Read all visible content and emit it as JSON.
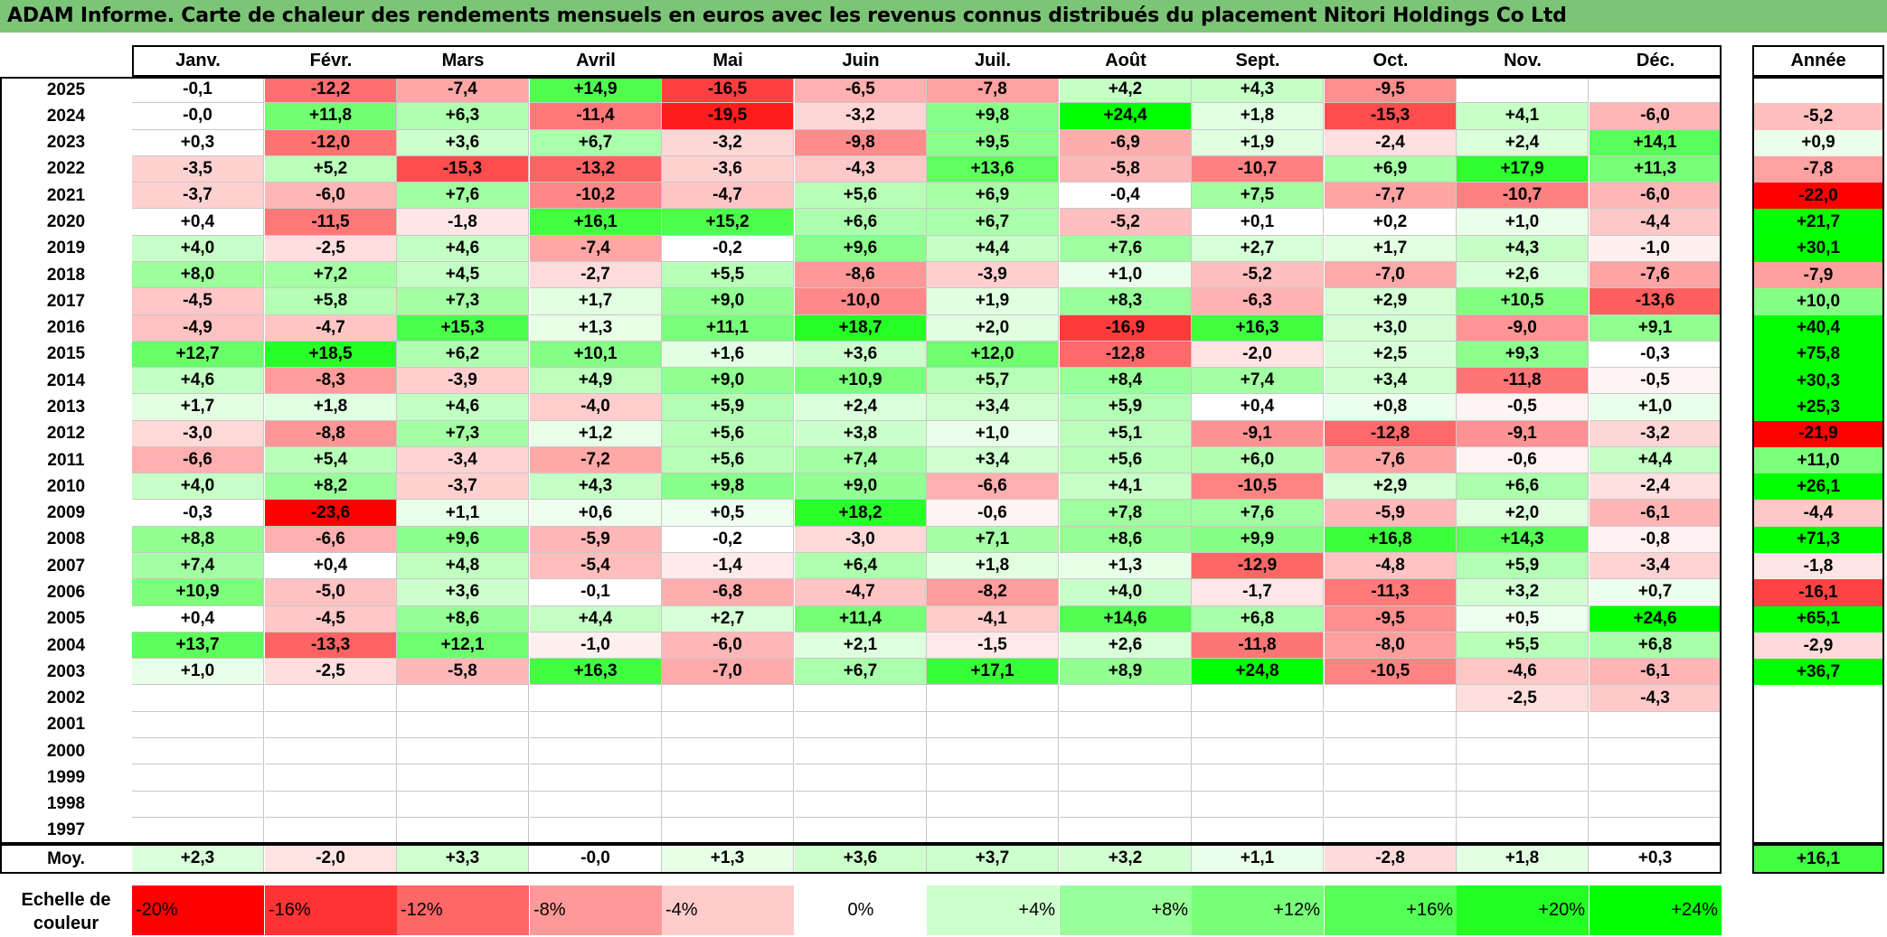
{
  "title": "ADAM Informe. Carte de chaleur des rendements mensuels en euros avec les revenus connus distribués du placement Nitori Holdings Co Ltd",
  "chart_data": {
    "type": "heatmap",
    "title": "ADAM Informe. Carte de chaleur des rendements mensuels en euros avec les revenus connus distribués du placement Nitori Holdings Co Ltd",
    "months": [
      "Janv.",
      "Févr.",
      "Mars",
      "Avril",
      "Mai",
      "Juin",
      "Juil.",
      "Août",
      "Sept.",
      "Oct.",
      "Nov.",
      "Déc."
    ],
    "year_header": "Année",
    "rows": [
      {
        "year": "2025",
        "values": [
          -0.1,
          -12.2,
          -7.4,
          14.9,
          -16.5,
          -6.5,
          -7.8,
          4.2,
          4.3,
          -9.5,
          null,
          null
        ],
        "annual": null
      },
      {
        "year": "2024",
        "values": [
          0.0,
          11.8,
          6.3,
          -11.4,
          -19.5,
          -3.2,
          9.8,
          24.4,
          1.8,
          -15.3,
          4.1,
          -6.0
        ],
        "annual": -5.2,
        "neg_zero": [
          0
        ]
      },
      {
        "year": "2023",
        "values": [
          0.3,
          -12.0,
          3.6,
          6.7,
          -3.2,
          -9.8,
          9.5,
          -6.9,
          1.9,
          -2.4,
          2.4,
          14.1
        ],
        "annual": 0.9
      },
      {
        "year": "2022",
        "values": [
          -3.5,
          5.2,
          -15.3,
          -13.2,
          -3.6,
          -4.3,
          13.6,
          -5.8,
          -10.7,
          6.9,
          17.9,
          11.3
        ],
        "annual": -7.8
      },
      {
        "year": "2021",
        "values": [
          -3.7,
          -6.0,
          7.6,
          -10.2,
          -4.7,
          5.6,
          6.9,
          -0.4,
          7.5,
          -7.7,
          -10.7,
          -6.0
        ],
        "annual": -22.0
      },
      {
        "year": "2020",
        "values": [
          0.4,
          -11.5,
          -1.8,
          16.1,
          15.2,
          6.6,
          6.7,
          -5.2,
          0.1,
          0.2,
          1.0,
          -4.4
        ],
        "annual": 21.7
      },
      {
        "year": "2019",
        "values": [
          4.0,
          -2.5,
          4.6,
          -7.4,
          -0.2,
          9.6,
          4.4,
          7.6,
          2.7,
          1.7,
          4.3,
          -1.0
        ],
        "annual": 30.1
      },
      {
        "year": "2018",
        "values": [
          8.0,
          7.2,
          4.5,
          -2.7,
          5.5,
          -8.6,
          -3.9,
          1.0,
          -5.2,
          -7.0,
          2.6,
          -7.6
        ],
        "annual": -7.9
      },
      {
        "year": "2017",
        "values": [
          -4.5,
          5.8,
          7.3,
          1.7,
          9.0,
          -10.0,
          1.9,
          8.3,
          -6.3,
          2.9,
          10.5,
          -13.6
        ],
        "annual": 10.0
      },
      {
        "year": "2016",
        "values": [
          -4.9,
          -4.7,
          15.3,
          1.3,
          11.1,
          18.7,
          2.0,
          -16.9,
          16.3,
          3.0,
          -9.0,
          9.1
        ],
        "annual": 40.4
      },
      {
        "year": "2015",
        "values": [
          12.7,
          18.5,
          6.2,
          10.1,
          1.6,
          3.6,
          12.0,
          -12.8,
          -2.0,
          2.5,
          9.3,
          -0.3
        ],
        "annual": 75.8
      },
      {
        "year": "2014",
        "values": [
          4.6,
          -8.3,
          -3.9,
          4.9,
          9.0,
          10.9,
          5.7,
          8.4,
          7.4,
          3.4,
          -11.8,
          -0.5
        ],
        "annual": 30.3
      },
      {
        "year": "2013",
        "values": [
          1.7,
          1.8,
          4.6,
          -4.0,
          5.9,
          2.4,
          3.4,
          5.9,
          0.4,
          0.8,
          -0.5,
          1.0
        ],
        "annual": 25.3
      },
      {
        "year": "2012",
        "values": [
          -3.0,
          -8.8,
          7.3,
          1.2,
          5.6,
          3.8,
          1.0,
          5.1,
          -9.1,
          -12.8,
          -9.1,
          -3.2
        ],
        "annual": -21.9
      },
      {
        "year": "2011",
        "values": [
          -6.6,
          5.4,
          -3.4,
          -7.2,
          5.6,
          7.4,
          3.4,
          5.6,
          6.0,
          -7.6,
          -0.6,
          4.4
        ],
        "annual": 11.0
      },
      {
        "year": "2010",
        "values": [
          4.0,
          8.2,
          -3.7,
          4.3,
          9.8,
          9.0,
          -6.6,
          4.1,
          -10.5,
          2.9,
          6.6,
          -2.4
        ],
        "annual": 26.1
      },
      {
        "year": "2009",
        "values": [
          -0.3,
          -23.6,
          1.1,
          0.6,
          0.5,
          18.2,
          -0.6,
          7.8,
          7.6,
          -5.9,
          2.0,
          -6.1
        ],
        "annual": -4.4
      },
      {
        "year": "2008",
        "values": [
          8.8,
          -6.6,
          9.6,
          -5.9,
          -0.2,
          -3.0,
          7.1,
          8.6,
          9.9,
          16.8,
          14.3,
          -0.8
        ],
        "annual": 71.3
      },
      {
        "year": "2007",
        "values": [
          7.4,
          0.4,
          4.8,
          -5.4,
          -1.4,
          6.4,
          1.8,
          1.3,
          -12.9,
          -4.8,
          5.9,
          -3.4
        ],
        "annual": -1.8
      },
      {
        "year": "2006",
        "values": [
          10.9,
          -5.0,
          3.6,
          -0.1,
          -6.8,
          -4.7,
          -8.2,
          4.0,
          -1.7,
          -11.3,
          3.2,
          0.7
        ],
        "annual": -16.1
      },
      {
        "year": "2005",
        "values": [
          0.4,
          -4.5,
          8.6,
          4.4,
          2.7,
          11.4,
          -4.1,
          14.6,
          6.8,
          -9.5,
          0.5,
          24.6
        ],
        "annual": 65.1
      },
      {
        "year": "2004",
        "values": [
          13.7,
          -13.3,
          12.1,
          -1.0,
          -6.0,
          2.1,
          -1.5,
          2.6,
          -11.8,
          -8.0,
          5.5,
          6.8
        ],
        "annual": -2.9
      },
      {
        "year": "2003",
        "values": [
          1.0,
          -2.5,
          -5.8,
          16.3,
          -7.0,
          6.7,
          17.1,
          8.9,
          24.8,
          -10.5,
          -4.6,
          -6.1
        ],
        "annual": 36.7
      },
      {
        "year": "2002",
        "values": [
          null,
          null,
          null,
          null,
          null,
          null,
          null,
          null,
          null,
          null,
          -2.5,
          -4.3
        ],
        "annual": null
      },
      {
        "year": "2001",
        "values": [
          null,
          null,
          null,
          null,
          null,
          null,
          null,
          null,
          null,
          null,
          null,
          null
        ],
        "annual": null
      },
      {
        "year": "2000",
        "values": [
          null,
          null,
          null,
          null,
          null,
          null,
          null,
          null,
          null,
          null,
          null,
          null
        ],
        "annual": null
      },
      {
        "year": "1999",
        "values": [
          null,
          null,
          null,
          null,
          null,
          null,
          null,
          null,
          null,
          null,
          null,
          null
        ],
        "annual": null
      },
      {
        "year": "1998",
        "values": [
          null,
          null,
          null,
          null,
          null,
          null,
          null,
          null,
          null,
          null,
          null,
          null
        ],
        "annual": null
      },
      {
        "year": "1997",
        "values": [
          null,
          null,
          null,
          null,
          null,
          null,
          null,
          null,
          null,
          null,
          null,
          null
        ],
        "annual": null
      }
    ],
    "average": {
      "label": "Moy.",
      "values": [
        2.3,
        -2.0,
        3.3,
        -0.0,
        1.3,
        3.6,
        3.7,
        3.2,
        1.1,
        -2.8,
        1.8,
        0.3
      ],
      "annual": 16.1,
      "neg_zero": [
        3
      ]
    },
    "scale": {
      "label_line1": "Echelle de",
      "label_line2": "couleur",
      "steps": [
        {
          "label": "-20%",
          "value": -20,
          "color": "#ff0000"
        },
        {
          "label": "-16%",
          "value": -16,
          "color": "#ff3333"
        },
        {
          "label": "-12%",
          "value": -12,
          "color": "#ff6666"
        },
        {
          "label": "-8%",
          "value": -8,
          "color": "#ff9999"
        },
        {
          "label": "-4%",
          "value": -4,
          "color": "#ffcccc"
        },
        {
          "label": "0%",
          "value": 0,
          "color": "#ffffff"
        },
        {
          "label": "+4%",
          "value": 4,
          "color": "#ccffcc"
        },
        {
          "label": "+8%",
          "value": 8,
          "color": "#99ff99"
        },
        {
          "label": "+12%",
          "value": 12,
          "color": "#77ff77"
        },
        {
          "label": "+16%",
          "value": 16,
          "color": "#55ff55"
        },
        {
          "label": "+20%",
          "value": 20,
          "color": "#22ff22"
        },
        {
          "label": "+24%",
          "value": 24,
          "color": "#00ff00"
        }
      ]
    },
    "colors": {
      "title_bar": "#7cc576",
      "negative_max": "#ff0000",
      "positive_max": "#00ff00"
    }
  }
}
